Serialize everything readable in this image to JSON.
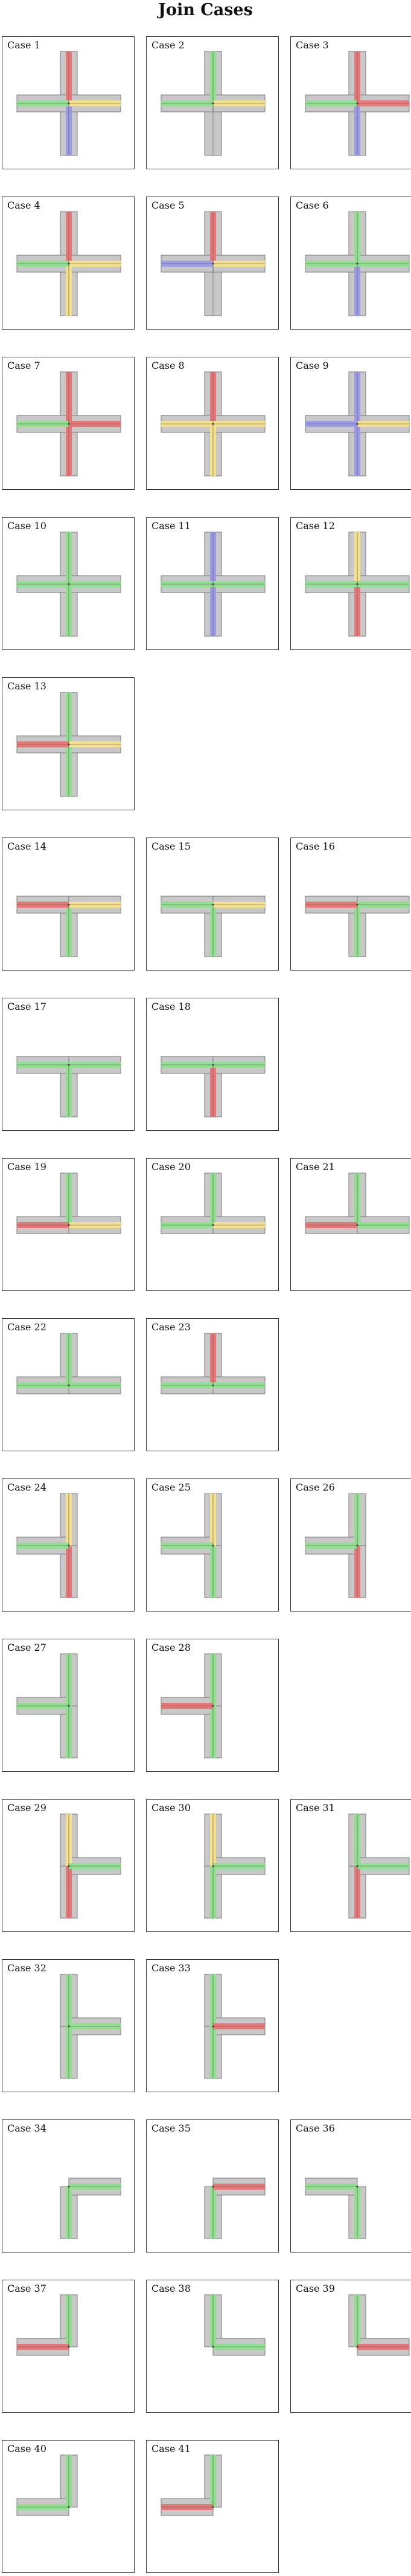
{
  "title": "Join Cases",
  "colors": {
    "green": "#90e090",
    "red": "#e87878",
    "yellow": "#f4e08a",
    "blue": "#9c9ce6",
    "gray": "#c8c8c8",
    "outline": "#7a7a7a"
  },
  "cases": [
    {
      "label": "Case 1",
      "arms": {
        "top": "red",
        "bottom": "blue",
        "left": "green",
        "right": "yellow"
      }
    },
    {
      "label": "Case 2",
      "arms": {
        "top": "green",
        "bottom": "gray",
        "left": "green",
        "right": "yellow"
      }
    },
    {
      "label": "Case 3",
      "arms": {
        "top": "red",
        "bottom": "blue",
        "left": "green",
        "right": "red"
      }
    },
    {
      "label": "Case 4",
      "arms": {
        "top": "red",
        "bottom": "yellow",
        "left": "green",
        "right": "yellow"
      }
    },
    {
      "label": "Case 5",
      "arms": {
        "top": "red",
        "bottom": "gray",
        "left": "blue",
        "right": "yellow"
      }
    },
    {
      "label": "Case 6",
      "arms": {
        "top": "green",
        "bottom": "blue",
        "left": "green",
        "right": "green"
      }
    },
    {
      "label": "Case 7",
      "arms": {
        "top": "red",
        "bottom": "red",
        "left": "green",
        "right": "red"
      }
    },
    {
      "label": "Case 8",
      "arms": {
        "top": "red",
        "bottom": "yellow",
        "left": "yellow",
        "right": "yellow"
      }
    },
    {
      "label": "Case 9",
      "arms": {
        "top": "blue",
        "bottom": "blue",
        "left": "blue",
        "right": "yellow"
      }
    },
    {
      "label": "Case 10",
      "arms": {
        "top": "green",
        "bottom": "green",
        "left": "green",
        "right": "green"
      }
    },
    {
      "label": "Case 11",
      "arms": {
        "top": "blue",
        "bottom": "blue",
        "left": "green",
        "right": "green"
      }
    },
    {
      "label": "Case 12",
      "arms": {
        "top": "yellow",
        "bottom": "red",
        "left": "green",
        "right": "green"
      }
    },
    {
      "label": "Case 13",
      "arms": {
        "top": "green",
        "bottom": "green",
        "left": "red",
        "right": "yellow"
      }
    },
    {
      "label": "Case 14",
      "arms": {
        "top": null,
        "bottom": "green",
        "left": "red",
        "right": "yellow"
      }
    },
    {
      "label": "Case 15",
      "arms": {
        "top": null,
        "bottom": "green",
        "left": "green",
        "right": "yellow"
      }
    },
    {
      "label": "Case 16",
      "arms": {
        "top": null,
        "bottom": "green",
        "left": "red",
        "right": "green"
      }
    },
    {
      "label": "Case 17",
      "arms": {
        "top": null,
        "bottom": "green",
        "left": "green",
        "right": "green"
      }
    },
    {
      "label": "Case 18",
      "arms": {
        "top": null,
        "bottom": "red",
        "left": "green",
        "right": "green"
      }
    },
    {
      "label": "Case 19",
      "arms": {
        "top": "green",
        "bottom": null,
        "left": "red",
        "right": "yellow"
      }
    },
    {
      "label": "Case 20",
      "arms": {
        "top": "green",
        "bottom": null,
        "left": "green",
        "right": "yellow"
      }
    },
    {
      "label": "Case 21",
      "arms": {
        "top": "green",
        "bottom": null,
        "left": "red",
        "right": "green"
      }
    },
    {
      "label": "Case 22",
      "arms": {
        "top": "green",
        "bottom": null,
        "left": "green",
        "right": "green"
      }
    },
    {
      "label": "Case 23",
      "arms": {
        "top": "red",
        "bottom": null,
        "left": "green",
        "right": "green"
      }
    },
    {
      "label": "Case 24",
      "arms": {
        "top": "yellow",
        "bottom": "red",
        "left": "green",
        "right": null
      }
    },
    {
      "label": "Case 25",
      "arms": {
        "top": "yellow",
        "bottom": "green",
        "left": "green",
        "right": null
      }
    },
    {
      "label": "Case 26",
      "arms": {
        "top": "green",
        "bottom": "red",
        "left": "green",
        "right": null
      }
    },
    {
      "label": "Case 27",
      "arms": {
        "top": "green",
        "bottom": "green",
        "left": "green",
        "right": null
      }
    },
    {
      "label": "Case 28",
      "arms": {
        "top": "green",
        "bottom": "green",
        "left": "red",
        "right": null
      }
    },
    {
      "label": "Case 29",
      "arms": {
        "top": "yellow",
        "bottom": "red",
        "left": null,
        "right": "green"
      }
    },
    {
      "label": "Case 30",
      "arms": {
        "top": "yellow",
        "bottom": "green",
        "left": null,
        "right": "green"
      }
    },
    {
      "label": "Case 31",
      "arms": {
        "top": "green",
        "bottom": "red",
        "left": null,
        "right": "green"
      }
    },
    {
      "label": "Case 32",
      "arms": {
        "top": "green",
        "bottom": "green",
        "left": null,
        "right": "green"
      }
    },
    {
      "label": "Case 33",
      "arms": {
        "top": "green",
        "bottom": "green",
        "left": null,
        "right": "red"
      }
    },
    {
      "label": "Case 34",
      "arms": {
        "top": null,
        "bottom": "green",
        "left": null,
        "right": "green"
      }
    },
    {
      "label": "Case 35",
      "arms": {
        "top": null,
        "bottom": "green",
        "left": null,
        "right": "red"
      }
    },
    {
      "label": "Case 36",
      "arms": {
        "top": null,
        "bottom": "green",
        "left": "green",
        "right": null
      }
    },
    {
      "label": "Case 37",
      "arms": {
        "top": "green",
        "bottom": null,
        "left": "red",
        "right": null
      }
    },
    {
      "label": "Case 38",
      "arms": {
        "top": "green",
        "bottom": null,
        "left": null,
        "right": "green"
      }
    },
    {
      "label": "Case 39",
      "arms": {
        "top": "green",
        "bottom": null,
        "left": null,
        "right": "red"
      }
    },
    {
      "label": "Case 40",
      "arms": {
        "top": "green",
        "bottom": null,
        "left": "green",
        "right": null
      }
    },
    {
      "label": "Case 41",
      "arms": {
        "top": "green",
        "bottom": null,
        "left": "red",
        "right": null
      }
    }
  ]
}
